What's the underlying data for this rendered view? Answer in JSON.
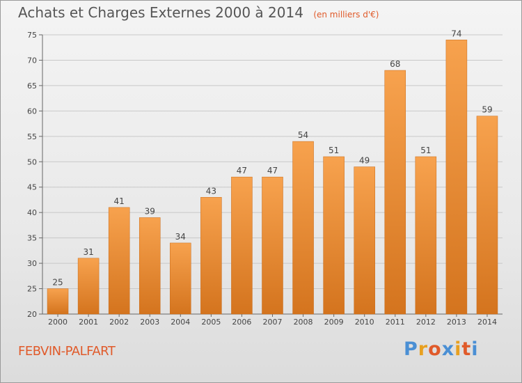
{
  "header": {
    "title": "Achats et Charges Externes 2000 à 2014",
    "unit": "(en milliers d'€)"
  },
  "footer": {
    "place": "FEBVIN-PALFART",
    "logo_letters": [
      "P",
      "r",
      "o",
      "x",
      "i",
      "t",
      "i"
    ],
    "logo_colors": [
      "#4a8fd4",
      "#e8a020",
      "#e05a2a",
      "#4a8fd4",
      "#e8a020",
      "#e05a2a",
      "#4a8fd4"
    ]
  },
  "colors": {
    "bar_top": "#f7a24e",
    "bar_bottom": "#d4741e",
    "bar_stroke": "#c86a18",
    "grid": "#c8c8c8"
  },
  "chart_data": {
    "type": "bar",
    "title": "Achats et Charges Externes 2000 à 2014",
    "subtitle": "(en milliers d'€)",
    "xlabel": "",
    "ylabel": "",
    "categories": [
      "2000",
      "2001",
      "2002",
      "2003",
      "2004",
      "2005",
      "2006",
      "2007",
      "2008",
      "2009",
      "2010",
      "2011",
      "2012",
      "2013",
      "2014"
    ],
    "values": [
      25,
      31,
      41,
      39,
      34,
      43,
      47,
      47,
      54,
      51,
      49,
      68,
      51,
      74,
      59
    ],
    "ylim": [
      20,
      75
    ],
    "yticks": [
      20,
      25,
      30,
      35,
      40,
      45,
      50,
      55,
      60,
      65,
      70,
      75
    ],
    "grid": true,
    "legend": "none"
  }
}
